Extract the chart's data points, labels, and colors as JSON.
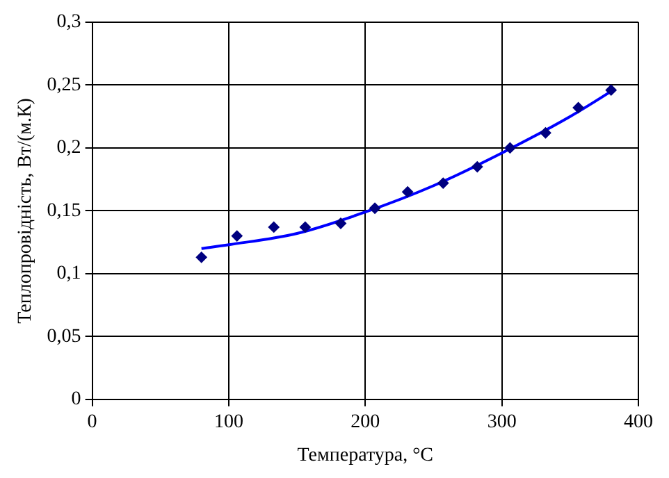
{
  "chart_data": {
    "type": "scatter",
    "xlabel": "Температура, °С",
    "ylabel": "Теплопровідність, Вт/(м.К)",
    "xlim": [
      0,
      400
    ],
    "xticks": [
      0,
      100,
      200,
      300,
      400
    ],
    "ylim": [
      0,
      0.3
    ],
    "yticks": [
      0,
      {
        "value": 0.05,
        "label": "0,05"
      },
      {
        "value": 0.1,
        "label": "0,1"
      },
      {
        "value": 0.15,
        "label": "0,15"
      },
      {
        "value": 0.2,
        "label": "0,2"
      },
      {
        "value": 0.25,
        "label": "0,25"
      },
      {
        "value": 0.3,
        "label": "0,3"
      }
    ],
    "grid": true,
    "legend": false,
    "series": [
      {
        "color": "#000080",
        "marker": "diamond",
        "x": [
          80,
          106,
          133,
          156,
          182,
          207,
          231,
          257,
          282,
          306,
          332,
          356,
          380
        ],
        "values": [
          0.113,
          0.13,
          0.137,
          0.137,
          0.14,
          0.152,
          0.165,
          0.172,
          0.185,
          0.2,
          0.212,
          0.232,
          0.246
        ]
      },
      {
        "type": "line",
        "color": "#0000ff",
        "marker": "none",
        "x": [
          80,
          100,
          150,
          200,
          250,
          300,
          350,
          383
        ],
        "values": [
          0.12,
          0.123,
          0.132,
          0.149,
          0.17,
          0.196,
          0.225,
          0.247
        ]
      }
    ]
  }
}
